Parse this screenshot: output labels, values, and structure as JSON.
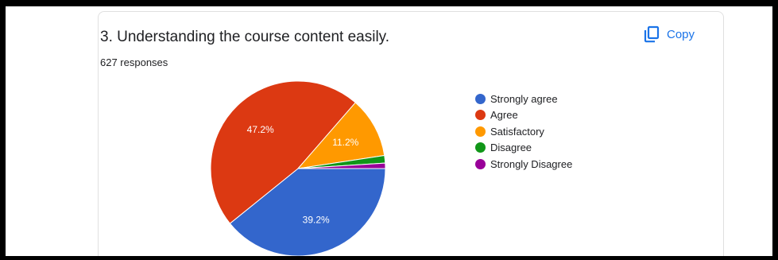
{
  "question": "3. Understanding the course content easily.",
  "responses": "627 responses",
  "copy_button": {
    "label": "Copy",
    "icon": "copy-icon"
  },
  "chart_data": {
    "type": "pie",
    "slices": [
      {
        "label": "Strongly agree",
        "value": 39.2,
        "color": "#3366cc",
        "data_label": "39.2%"
      },
      {
        "label": "Agree",
        "value": 47.2,
        "color": "#dc3912",
        "data_label": "47.2%"
      },
      {
        "label": "Satisfactory",
        "value": 11.2,
        "color": "#ff9900",
        "data_label": "11.2%"
      },
      {
        "label": "Disagree",
        "value": 1.4,
        "color": "#109618",
        "data_label": ""
      },
      {
        "label": "Strongly Disagree",
        "value": 1.0,
        "color": "#990099",
        "data_label": ""
      }
    ],
    "legend_position": "right"
  }
}
